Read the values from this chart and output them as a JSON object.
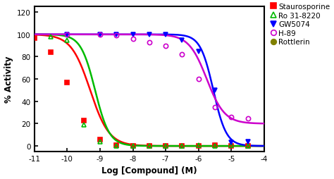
{
  "title": "",
  "xlabel": "Log [Compound] (M)",
  "ylabel": "% Activity",
  "xlim": [
    -11,
    -4
  ],
  "ylim": [
    -5,
    125
  ],
  "yticks": [
    0,
    20,
    40,
    60,
    80,
    100,
    120
  ],
  "xticks": [
    -11,
    -10,
    -9,
    -8,
    -7,
    -6,
    -5,
    -4
  ],
  "background_color": "#ffffff",
  "series": [
    {
      "name": "Staurosporine",
      "color": "#ff0000",
      "marker": "s",
      "filled": true,
      "ic50_log": -9.3,
      "hill": 1.5,
      "top": 100,
      "bottom": 0,
      "data_x": [
        -11,
        -10.5,
        -10,
        -9.5,
        -9,
        -8.5,
        -8,
        -7.5,
        -7,
        -6.5,
        -6,
        -5.5,
        -5,
        -4.5
      ],
      "data_y": [
        97,
        84,
        57,
        23,
        6,
        1,
        0,
        0,
        0,
        0,
        0,
        1,
        0,
        0
      ]
    },
    {
      "name": "Ro 31-8220",
      "color": "#00bb00",
      "marker": "^",
      "filled": false,
      "ic50_log": -9.15,
      "hill": 2.0,
      "top": 100,
      "bottom": 0,
      "data_x": [
        -10.5,
        -10,
        -9.5,
        -9,
        -8.5,
        -8,
        -7.5,
        -7,
        -6.5,
        -6,
        -5.5,
        -5,
        -4.5
      ],
      "data_y": [
        98,
        95,
        19,
        4,
        0,
        0,
        0,
        0,
        0,
        1,
        0,
        1,
        0
      ]
    },
    {
      "name": "GW5074",
      "color": "#0000ff",
      "marker": "v",
      "filled": true,
      "ic50_log": -5.55,
      "hill": 2.2,
      "top": 100,
      "bottom": 0,
      "data_x": [
        -10,
        -9,
        -8.5,
        -8,
        -7.5,
        -7,
        -6.5,
        -6,
        -5.5,
        -5,
        -4.5
      ],
      "data_y": [
        100,
        100,
        100,
        100,
        100,
        100,
        95,
        85,
        50,
        3,
        4
      ]
    },
    {
      "name": "H-89",
      "color": "#cc00cc",
      "marker": "o",
      "filled": false,
      "ic50_log": -5.75,
      "hill": 1.6,
      "top": 100,
      "bottom": 20,
      "data_x": [
        -10,
        -9,
        -8.5,
        -8,
        -7.5,
        -7,
        -6.5,
        -6,
        -5.5,
        -5,
        -4.5
      ],
      "data_y": [
        100,
        100,
        99,
        96,
        93,
        90,
        82,
        60,
        35,
        26,
        25
      ]
    },
    {
      "name": "Rottlerin",
      "color": "#808000",
      "marker": "o",
      "filled": true,
      "data_x": [],
      "data_y": []
    }
  ]
}
